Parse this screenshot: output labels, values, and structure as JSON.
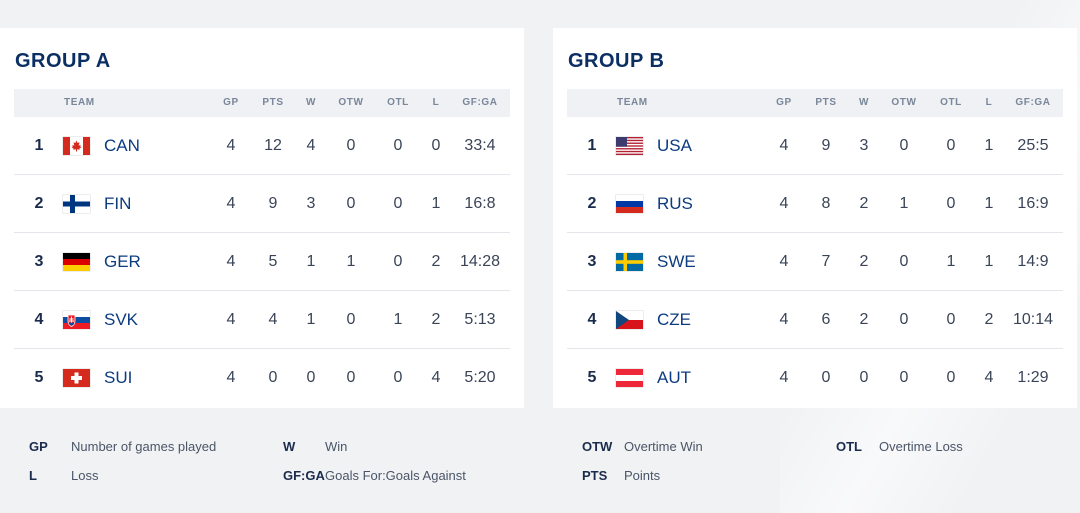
{
  "headers": {
    "team": "TEAM",
    "gp": "GP",
    "pts": "PTS",
    "w": "W",
    "otw": "OTW",
    "otl": "OTL",
    "l": "L",
    "gfga": "GF:GA"
  },
  "groups": [
    {
      "title": "GROUP A",
      "rows": [
        {
          "rank": "1",
          "code": "CAN",
          "flag": "canada-flag",
          "gp": "4",
          "pts": "12",
          "w": "4",
          "otw": "0",
          "otl": "0",
          "l": "0",
          "gfga": "33:4"
        },
        {
          "rank": "2",
          "code": "FIN",
          "flag": "finland-flag",
          "gp": "4",
          "pts": "9",
          "w": "3",
          "otw": "0",
          "otl": "0",
          "l": "1",
          "gfga": "16:8"
        },
        {
          "rank": "3",
          "code": "GER",
          "flag": "germany-flag",
          "gp": "4",
          "pts": "5",
          "w": "1",
          "otw": "1",
          "otl": "0",
          "l": "2",
          "gfga": "14:28"
        },
        {
          "rank": "4",
          "code": "SVK",
          "flag": "slovakia-flag",
          "gp": "4",
          "pts": "4",
          "w": "1",
          "otw": "0",
          "otl": "1",
          "l": "2",
          "gfga": "5:13"
        },
        {
          "rank": "5",
          "code": "SUI",
          "flag": "switzerland-flag",
          "gp": "4",
          "pts": "0",
          "w": "0",
          "otw": "0",
          "otl": "0",
          "l": "4",
          "gfga": "5:20"
        }
      ]
    },
    {
      "title": "GROUP B",
      "rows": [
        {
          "rank": "1",
          "code": "USA",
          "flag": "usa-flag",
          "gp": "4",
          "pts": "9",
          "w": "3",
          "otw": "0",
          "otl": "0",
          "l": "1",
          "gfga": "25:5"
        },
        {
          "rank": "2",
          "code": "RUS",
          "flag": "russia-flag",
          "gp": "4",
          "pts": "8",
          "w": "2",
          "otw": "1",
          "otl": "0",
          "l": "1",
          "gfga": "16:9"
        },
        {
          "rank": "3",
          "code": "SWE",
          "flag": "sweden-flag",
          "gp": "4",
          "pts": "7",
          "w": "2",
          "otw": "0",
          "otl": "1",
          "l": "1",
          "gfga": "14:9"
        },
        {
          "rank": "4",
          "code": "CZE",
          "flag": "czech-flag",
          "gp": "4",
          "pts": "6",
          "w": "2",
          "otw": "0",
          "otl": "0",
          "l": "2",
          "gfga": "10:14"
        },
        {
          "rank": "5",
          "code": "AUT",
          "flag": "austria-flag",
          "gp": "4",
          "pts": "0",
          "w": "0",
          "otw": "0",
          "otl": "0",
          "l": "4",
          "gfga": "1:29"
        }
      ]
    }
  ],
  "legend": {
    "gp": {
      "abbr": "GP",
      "desc": "Number of games played"
    },
    "w": {
      "abbr": "W",
      "desc": "Win"
    },
    "otw": {
      "abbr": "OTW",
      "desc": "Overtime Win"
    },
    "otl": {
      "abbr": "OTL",
      "desc": "Overtime Loss"
    },
    "l": {
      "abbr": "L",
      "desc": "Loss"
    },
    "gfga": {
      "abbr": "GF:GA",
      "desc": "Goals For:Goals Against"
    },
    "pts": {
      "abbr": "PTS",
      "desc": "Points"
    }
  },
  "colors": {
    "title": "#0c2f63",
    "team_code": "#0c3b80",
    "header_bg": "#eff1f4",
    "page_bg": "#f1f2f4"
  }
}
